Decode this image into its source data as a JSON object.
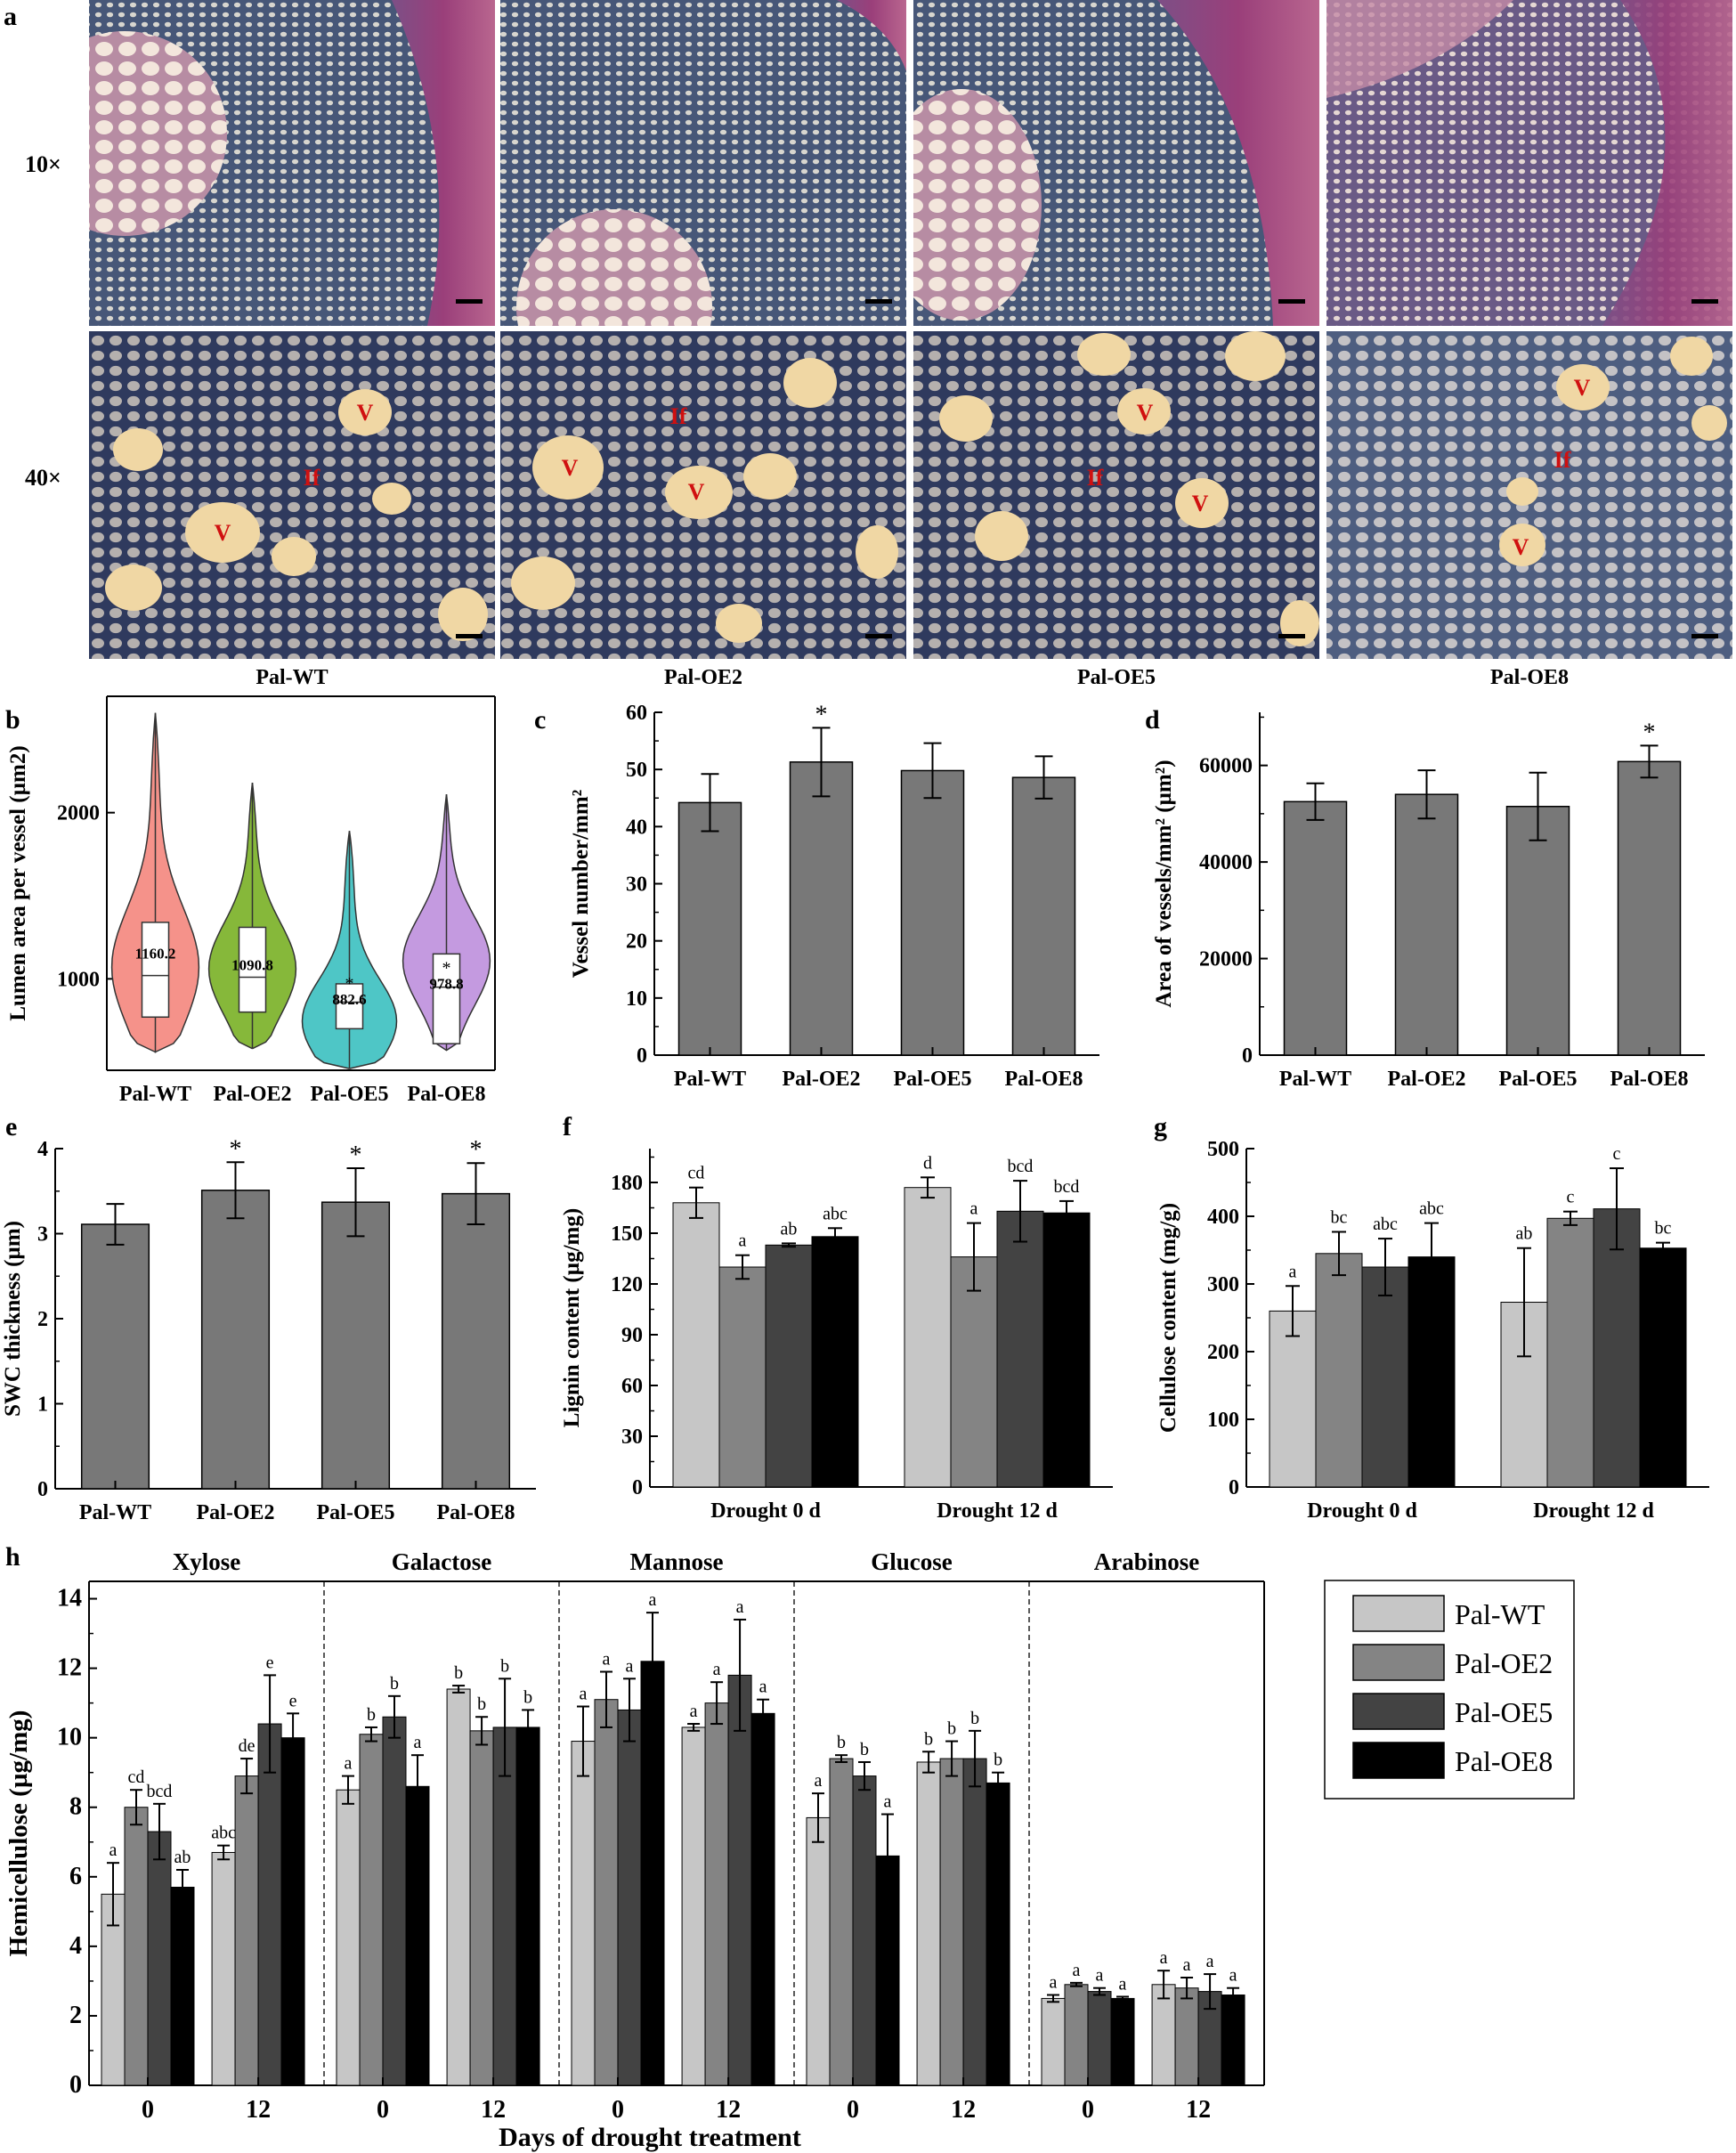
{
  "colors": {
    "WT": "#c6c6c6",
    "OE2": "#848484",
    "OE5": "#434343",
    "OE8": "#000000",
    "gray_bar": "#787878",
    "violin_WT": "#f5928a",
    "violin_OE2": "#86b83a",
    "violin_OE5": "#4ec6c6",
    "violin_OE8": "#c49ae0",
    "micrograph_label_red": "#d01010"
  },
  "panel_a": {
    "letter": "a",
    "row_labels": [
      "10×",
      "40×"
    ],
    "column_labels": [
      "Pal-WT",
      "Pal-OE2",
      "Pal-OE5",
      "Pal-OE8"
    ],
    "marker_vessel": "V",
    "marker_fiber": "If"
  },
  "chart_data": [
    {
      "panel": "b",
      "type": "violin",
      "ylabel": "Lumen area per vessel (µm2)",
      "categories": [
        "Pal-WT",
        "Pal-OE2",
        "Pal-OE5",
        "Pal-OE8"
      ],
      "yticks": [
        1000,
        2000
      ],
      "ylim": [
        450,
        2700
      ],
      "mean_labels": [
        "1160.2",
        "1090.8",
        "882.6",
        "978.8"
      ],
      "significance": [
        "",
        "",
        "*",
        "*"
      ],
      "min": [
        560,
        580,
        460,
        570
      ],
      "max": [
        2600,
        2180,
        1890,
        2110
      ],
      "q1": [
        770,
        800,
        700,
        610
      ],
      "median": [
        1020,
        1010,
        860,
        950
      ],
      "q3": [
        1340,
        1310,
        970,
        1150
      ]
    },
    {
      "panel": "c",
      "type": "bar",
      "ylabel": "Vessel number/mm²",
      "categories": [
        "Pal-WT",
        "Pal-OE2",
        "Pal-OE5",
        "Pal-OE8"
      ],
      "values": [
        44.2,
        51.3,
        49.8,
        48.6
      ],
      "errors": [
        5.0,
        6.0,
        4.8,
        3.7
      ],
      "significance": [
        "",
        "*",
        "",
        ""
      ],
      "yticks": [
        0,
        10,
        20,
        30,
        40,
        50,
        60
      ],
      "ylim": [
        0,
        60
      ]
    },
    {
      "panel": "d",
      "type": "bar",
      "ylabel": "Area of vessels/mm² (µm²)",
      "categories": [
        "Pal-WT",
        "Pal-OE2",
        "Pal-OE5",
        "Pal-OE8"
      ],
      "values": [
        52500,
        54000,
        51500,
        60800
      ],
      "errors": [
        3800,
        5000,
        7000,
        3300
      ],
      "significance": [
        "",
        "",
        "",
        "*"
      ],
      "yticks": [
        0,
        20000,
        40000,
        60000
      ],
      "ylim": [
        0,
        71000
      ]
    },
    {
      "panel": "e",
      "type": "bar",
      "ylabel": "SWC thickness (µm)",
      "categories": [
        "Pal-WT",
        "Pal-OE2",
        "Pal-OE5",
        "Pal-OE8"
      ],
      "values": [
        3.11,
        3.51,
        3.37,
        3.47
      ],
      "errors": [
        0.24,
        0.33,
        0.4,
        0.36
      ],
      "significance": [
        "",
        "*",
        "*",
        "*"
      ],
      "yticks": [
        0,
        1,
        2,
        3,
        4
      ],
      "ylim": [
        0,
        4
      ]
    },
    {
      "panel": "f",
      "type": "bar",
      "ylabel": "Lignin content (µg/mg)",
      "categories": [
        "Drought 0 d",
        "Drought 12 d"
      ],
      "series": [
        {
          "name": "Pal-WT",
          "values": [
            168,
            177
          ],
          "errors": [
            9,
            6
          ],
          "letters": [
            "cd",
            "d"
          ]
        },
        {
          "name": "Pal-OE2",
          "values": [
            130,
            136
          ],
          "errors": [
            7,
            20
          ],
          "letters": [
            "a",
            "a"
          ]
        },
        {
          "name": "Pal-OE5",
          "values": [
            143,
            163
          ],
          "errors": [
            1,
            18
          ],
          "letters": [
            "ab",
            "bcd"
          ]
        },
        {
          "name": "Pal-OE8",
          "values": [
            148,
            162
          ],
          "errors": [
            5,
            7
          ],
          "letters": [
            "abc",
            "bcd"
          ]
        }
      ],
      "yticks": [
        0,
        30,
        60,
        90,
        120,
        150,
        180
      ],
      "ylim": [
        0,
        200
      ]
    },
    {
      "panel": "g",
      "type": "bar",
      "ylabel": "Cellulose content (mg/g)",
      "categories": [
        "Drought 0 d",
        "Drought 12 d"
      ],
      "series": [
        {
          "name": "Pal-WT",
          "values": [
            260,
            273
          ],
          "errors": [
            37,
            80
          ],
          "letters": [
            "a",
            "ab"
          ]
        },
        {
          "name": "Pal-OE2",
          "values": [
            345,
            397
          ],
          "errors": [
            32,
            10
          ],
          "letters": [
            "bc",
            "c"
          ]
        },
        {
          "name": "Pal-OE5",
          "values": [
            325,
            411
          ],
          "errors": [
            42,
            60
          ],
          "letters": [
            "abc",
            "c"
          ]
        },
        {
          "name": "Pal-OE8",
          "values": [
            340,
            353
          ],
          "errors": [
            50,
            8
          ],
          "letters": [
            "abc",
            "bc"
          ]
        }
      ],
      "yticks": [
        0,
        100,
        200,
        300,
        400,
        500
      ],
      "ylim": [
        0,
        500
      ]
    },
    {
      "panel": "h",
      "type": "bar",
      "ylabel": "Hemicellulose (µg/mg)",
      "xlabel": "Days of drought treatment",
      "groups": [
        "Xylose",
        "Galactose",
        "Mannose",
        "Glucose",
        "Arabinose"
      ],
      "categories": [
        "0",
        "12"
      ],
      "legend": [
        "Pal-WT",
        "Pal-OE2",
        "Pal-OE5",
        "Pal-OE8"
      ],
      "values": [
        [
          [
            5.5,
            8.0,
            7.3,
            5.7
          ],
          [
            6.7,
            8.9,
            10.4,
            10.0
          ]
        ],
        [
          [
            8.5,
            10.1,
            10.6,
            8.6
          ],
          [
            11.4,
            10.2,
            10.3,
            10.3
          ]
        ],
        [
          [
            9.9,
            11.1,
            10.8,
            12.2
          ],
          [
            10.3,
            11.0,
            11.8,
            10.7
          ]
        ],
        [
          [
            7.7,
            9.4,
            8.9,
            6.6
          ],
          [
            9.3,
            9.4,
            9.4,
            8.7
          ]
        ],
        [
          [
            2.5,
            2.9,
            2.7,
            2.5
          ],
          [
            2.9,
            2.8,
            2.7,
            2.6
          ]
        ]
      ],
      "errors": [
        [
          [
            0.9,
            0.5,
            0.8,
            0.5
          ],
          [
            0.2,
            0.5,
            1.4,
            0.7
          ]
        ],
        [
          [
            0.4,
            0.2,
            0.6,
            0.9
          ],
          [
            0.1,
            0.4,
            1.4,
            0.5
          ]
        ],
        [
          [
            1.0,
            0.8,
            0.9,
            1.4
          ],
          [
            0.1,
            0.6,
            1.6,
            0.4
          ]
        ],
        [
          [
            0.7,
            0.1,
            0.4,
            1.2
          ],
          [
            0.3,
            0.5,
            0.8,
            0.3
          ]
        ],
        [
          [
            0.1,
            0.05,
            0.1,
            0.05
          ],
          [
            0.4,
            0.3,
            0.5,
            0.2
          ]
        ]
      ],
      "letters": [
        [
          [
            "a",
            "cd",
            "bcd",
            "ab"
          ],
          [
            "abc",
            "de",
            "e",
            "e"
          ]
        ],
        [
          [
            "a",
            "b",
            "b",
            "a"
          ],
          [
            "b",
            "b",
            "b",
            "b"
          ]
        ],
        [
          [
            "a",
            "a",
            "a",
            "a"
          ],
          [
            "a",
            "a",
            "a",
            "a"
          ]
        ],
        [
          [
            "a",
            "b",
            "b",
            "a"
          ],
          [
            "b",
            "b",
            "b",
            "b"
          ]
        ],
        [
          [
            "a",
            "a",
            "a",
            "a"
          ],
          [
            "a",
            "a",
            "a",
            "a"
          ]
        ]
      ],
      "yticks": [
        0,
        2,
        4,
        6,
        8,
        10,
        12,
        14
      ],
      "ylim": [
        0,
        14.5
      ]
    }
  ]
}
